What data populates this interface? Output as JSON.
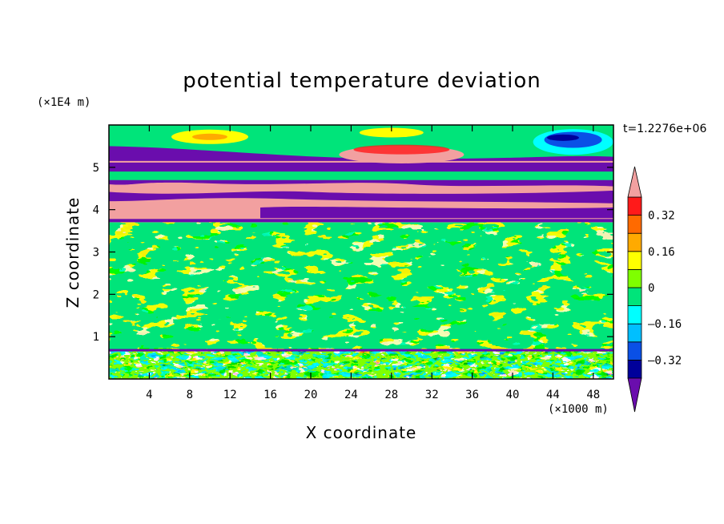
{
  "chart_data": {
    "type": "heatmap",
    "title": "potential temperature deviation",
    "xlabel": "X coordinate",
    "ylabel": "Z coordinate",
    "x_unit": "(×1000 m)",
    "y_unit": "(×1E4 m)",
    "time_label": "t=1.2276e+06",
    "xlim": [
      0,
      50
    ],
    "ylim": [
      0,
      6
    ],
    "x_ticks": [
      "4",
      "8",
      "12",
      "16",
      "20",
      "24",
      "28",
      "32",
      "36",
      "40",
      "44",
      "48"
    ],
    "x_tick_values": [
      4,
      8,
      12,
      16,
      20,
      24,
      28,
      32,
      36,
      40,
      44,
      48
    ],
    "y_ticks": [
      "1",
      "2",
      "3",
      "4",
      "5"
    ],
    "y_tick_values": [
      1,
      2,
      3,
      4,
      5
    ],
    "colorbar": {
      "levels": [
        -0.48,
        -0.4,
        -0.32,
        -0.24,
        -0.16,
        -0.08,
        0,
        0.08,
        0.16,
        0.24,
        0.32,
        0.4,
        0.48
      ],
      "colors": [
        "#4b0082",
        "#00009a",
        "#0a50e6",
        "#00bfff",
        "#00ffff",
        "#00e47a",
        "#7fff00",
        "#ffff00",
        "#ffaa00",
        "#ff6a00",
        "#ff1a1a",
        "#f2a0a0"
      ],
      "tick_labels": [
        "0.32",
        "0.16",
        "0",
        "–0.16",
        "–0.32"
      ],
      "tick_values": [
        0.32,
        0.16,
        0,
        -0.16,
        -0.32
      ],
      "extend": "both",
      "under_color": "#6a0dad",
      "over_color": "#f2a0a0"
    },
    "fields": {
      "background": "#00e47a",
      "layers": [
        {
          "z_range": [
            0,
            0.68
          ],
          "description_values": "mixed -0.4 to 0.4"
        },
        {
          "z_range": [
            0.68,
            3.7
          ],
          "value": 0.0
        },
        {
          "z_range": [
            3.7,
            4.7
          ],
          "value": 0.48
        },
        {
          "z_range": [
            4.7,
            5.15
          ],
          "value": 0.48
        },
        {
          "z_range": [
            5.15,
            5.5
          ],
          "value": -0.48
        },
        {
          "z_range": [
            5.5,
            6.0
          ],
          "value": 0.0
        }
      ]
    }
  }
}
